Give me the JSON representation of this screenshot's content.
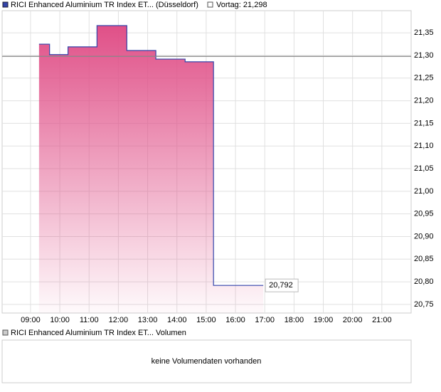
{
  "chart_data": {
    "type": "step-area",
    "series": [
      {
        "name": "RICI Enhanced Aluminium TR Index ET... (Düsseldorf)",
        "color": "#3344aa",
        "x": [
          9.29,
          9.65,
          10.28,
          11.27,
          12.29,
          13.28,
          14.28,
          15.25,
          16.95
        ],
        "values": [
          21.325,
          21.302,
          21.319,
          21.366,
          21.311,
          21.292,
          21.286,
          20.792,
          20.792
        ]
      }
    ],
    "last_value_label": {
      "value": 20.792,
      "label": "20,792"
    },
    "reference_line": {
      "name": "Vortag: 21,298",
      "value": 21.298,
      "color": "#888888"
    },
    "xlim": [
      8.03,
      22.0
    ],
    "xticks": [
      {
        "value": 9,
        "label": "09:00"
      },
      {
        "value": 10,
        "label": "10:00"
      },
      {
        "value": 11,
        "label": "11:00"
      },
      {
        "value": 12,
        "label": "12:00"
      },
      {
        "value": 13,
        "label": "13:00"
      },
      {
        "value": 14,
        "label": "14:00"
      },
      {
        "value": 15,
        "label": "15:00"
      },
      {
        "value": 16,
        "label": "16:00"
      },
      {
        "value": 17,
        "label": "17:00"
      },
      {
        "value": 18,
        "label": "18:00"
      },
      {
        "value": 19,
        "label": "19:00"
      },
      {
        "value": 20,
        "label": "20:00"
      },
      {
        "value": 21,
        "label": "21:00"
      }
    ],
    "ylim": [
      20.731,
      21.399
    ],
    "yticks": [
      {
        "value": 20.75,
        "label": "20,75"
      },
      {
        "value": 20.8,
        "label": "20,80"
      },
      {
        "value": 20.85,
        "label": "20,85"
      },
      {
        "value": 20.9,
        "label": "20,90"
      },
      {
        "value": 20.95,
        "label": "20,95"
      },
      {
        "value": 21.0,
        "label": "21,00"
      },
      {
        "value": 21.05,
        "label": "21,05"
      },
      {
        "value": 21.1,
        "label": "21,10"
      },
      {
        "value": 21.15,
        "label": "21,15"
      },
      {
        "value": 21.2,
        "label": "21,20"
      },
      {
        "value": 21.25,
        "label": "21,25"
      },
      {
        "value": 21.3,
        "label": "21,30"
      },
      {
        "value": 21.35,
        "label": "21,35"
      }
    ],
    "grid": true,
    "volume_panel": {
      "legend": "RICI Enhanced Aluminium TR Index ET... Volumen",
      "message": "keine Volumendaten vorhanden"
    }
  }
}
